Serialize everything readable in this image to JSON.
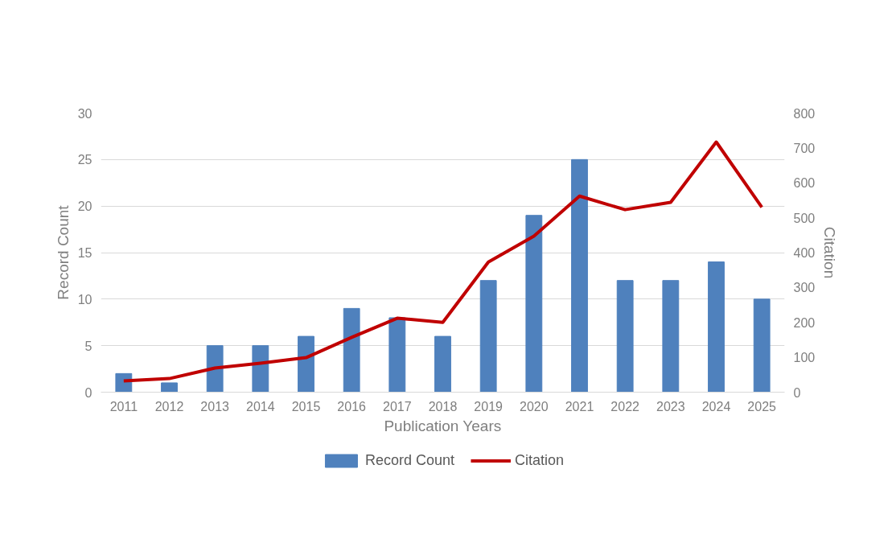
{
  "chart_data": {
    "type": "bar",
    "xlabel": "Publication Years",
    "ylabel": "Record Count",
    "y2label": "Citation",
    "categories": [
      "2011",
      "2012",
      "2013",
      "2014",
      "2015",
      "2016",
      "2017",
      "2018",
      "2019",
      "2020",
      "2021",
      "2022",
      "2023",
      "2024",
      "2025"
    ],
    "series": [
      {
        "name": "Record Count",
        "color": "#4f81bd",
        "values": [
          2,
          1,
          5,
          5,
          6,
          9,
          8,
          6,
          12,
          19,
          25,
          12,
          12,
          14,
          10
        ]
      },
      {
        "name": "Citation",
        "type": "line",
        "axis": "y2",
        "color": "#c00000",
        "values": [
          32,
          39,
          69,
          83,
          99,
          157,
          212,
          200,
          373,
          447,
          562,
          523,
          544,
          717,
          530
        ]
      }
    ],
    "ylim": [
      0,
      30
    ],
    "yticks": [
      0,
      5,
      10,
      15,
      20,
      25,
      30
    ],
    "y2lim": [
      0,
      800
    ],
    "y2ticks": [
      0,
      100,
      200,
      300,
      400,
      500,
      600,
      700,
      800
    ],
    "grid": "y",
    "legend": "bottom"
  }
}
